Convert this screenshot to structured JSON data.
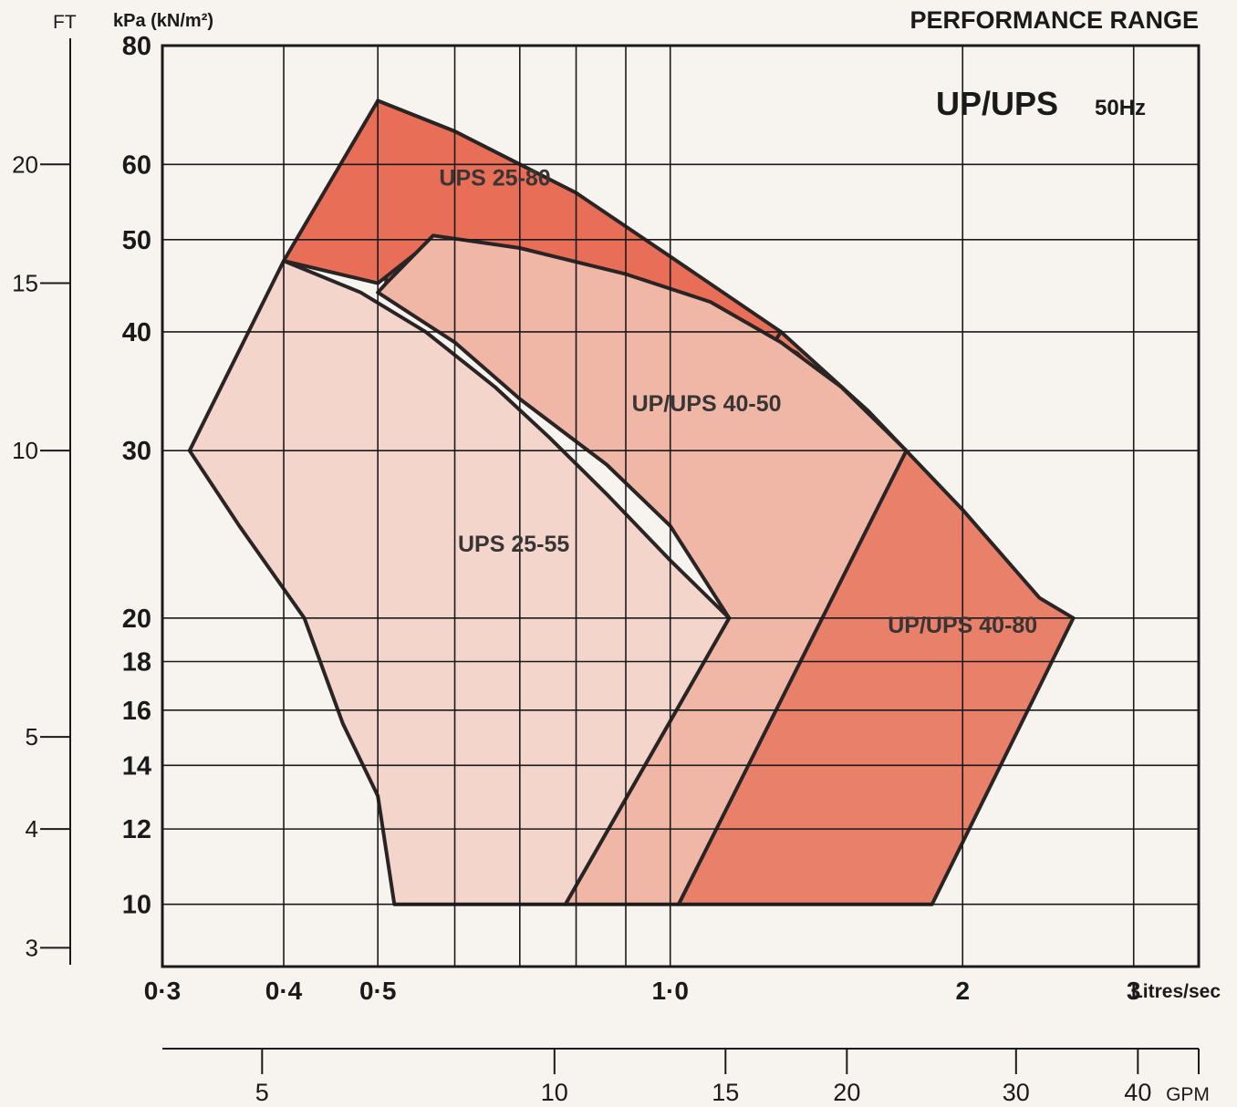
{
  "page_title": "PERFORMANCE RANGE",
  "chart_data": {
    "type": "area",
    "title": "UP/UPS",
    "subtitle": "50Hz",
    "y_left_label": "FT",
    "y_label": "kPa (kN/m²)",
    "x_label": "Litres/sec",
    "x2_label": "GPM",
    "y_scale": "log",
    "x_scale": "log",
    "xlim": [
      0.3,
      3.5
    ],
    "ylim": [
      8.6,
      80
    ],
    "grid": true,
    "x_ticks": [
      {
        "value": 0.3,
        "label": "0·3"
      },
      {
        "value": 0.4,
        "label": "0·4"
      },
      {
        "value": 0.5,
        "label": "0·5"
      },
      {
        "value": 1.0,
        "label": "1·0"
      },
      {
        "value": 2,
        "label": "2"
      },
      {
        "value": 3,
        "label": "3"
      }
    ],
    "x_grid": [
      0.4,
      0.5,
      0.6,
      0.7,
      0.8,
      0.9,
      1.0,
      2,
      3
    ],
    "y_ticks": [
      {
        "value": 80,
        "label": "80"
      },
      {
        "value": 60,
        "label": "60"
      },
      {
        "value": 50,
        "label": "50"
      },
      {
        "value": 40,
        "label": "40"
      },
      {
        "value": 30,
        "label": "30"
      },
      {
        "value": 20,
        "label": "20"
      },
      {
        "value": 18,
        "label": "18"
      },
      {
        "value": 16,
        "label": "16"
      },
      {
        "value": 14,
        "label": "14"
      },
      {
        "value": 12,
        "label": "12"
      },
      {
        "value": 10,
        "label": "10"
      }
    ],
    "ft_ticks": [
      {
        "label": "20",
        "kpa": 60
      },
      {
        "label": "15",
        "kpa": 45
      },
      {
        "label": "10",
        "kpa": 30
      },
      {
        "label": "5",
        "kpa": 15
      },
      {
        "label": "4",
        "kpa": 12
      },
      {
        "label": "3",
        "kpa": 9
      }
    ],
    "gpm_ticks": [
      {
        "label": "5",
        "lps": 0.38
      },
      {
        "label": "10",
        "lps": 0.76
      },
      {
        "label": "15",
        "lps": 1.14
      },
      {
        "label": "20",
        "lps": 1.52
      },
      {
        "label": "30",
        "lps": 2.27
      },
      {
        "label": "40",
        "lps": 3.03
      },
      {
        "label": "GPM",
        "lps": 3.5
      }
    ],
    "series": [
      {
        "name": "UP/UPS 40-80",
        "color": "#e8806a",
        "label_at": [
          2.0,
          19.3
        ],
        "polygon": [
          [
            0.5,
            70
          ],
          [
            0.6,
            65
          ],
          [
            0.8,
            56
          ],
          [
            1.0,
            47
          ],
          [
            1.3,
            40
          ],
          [
            1.6,
            33
          ],
          [
            2.0,
            26
          ],
          [
            2.4,
            21
          ],
          [
            2.6,
            20
          ],
          [
            1.86,
            10
          ],
          [
            1.02,
            10
          ],
          [
            1.72,
            30
          ],
          [
            1.35,
            38
          ],
          [
            1.0,
            44
          ],
          [
            0.75,
            48
          ],
          [
            0.59,
            50
          ],
          [
            0.51,
            45
          ]
        ]
      },
      {
        "name": "UPS 25-80",
        "color": "#e86e58",
        "label_at": [
          0.66,
          57
        ],
        "polygon": [
          [
            0.5,
            70
          ],
          [
            0.6,
            65
          ],
          [
            0.8,
            56
          ],
          [
            1.0,
            48
          ],
          [
            1.3,
            40
          ],
          [
            1.25,
            37.5
          ],
          [
            1.0,
            43
          ],
          [
            0.75,
            47
          ],
          [
            0.57,
            50
          ],
          [
            0.5,
            45
          ],
          [
            0.4,
            47.5
          ]
        ]
      },
      {
        "name": "UP/UPS 40-50",
        "color": "#f0b6a6",
        "label_at": [
          1.09,
          33
        ],
        "polygon": [
          [
            0.51,
            45
          ],
          [
            0.57,
            50.5
          ],
          [
            0.7,
            49
          ],
          [
            0.9,
            46
          ],
          [
            1.1,
            43
          ],
          [
            1.3,
            39
          ],
          [
            1.5,
            35
          ],
          [
            1.75,
            30
          ],
          [
            1.02,
            10
          ],
          [
            0.78,
            10
          ],
          [
            1.15,
            20
          ],
          [
            1.0,
            25
          ],
          [
            0.86,
            29
          ],
          [
            0.7,
            34
          ],
          [
            0.6,
            39
          ],
          [
            0.5,
            44
          ]
        ]
      },
      {
        "name": "UPS 25-55",
        "color": "#f3d5cb",
        "label_at": [
          0.69,
          23.5
        ],
        "polygon": [
          [
            0.4,
            47.5
          ],
          [
            0.48,
            44
          ],
          [
            0.56,
            40
          ],
          [
            0.66,
            35
          ],
          [
            0.75,
            31
          ],
          [
            0.86,
            27
          ],
          [
            1.0,
            23
          ],
          [
            1.15,
            20
          ],
          [
            0.78,
            10
          ],
          [
            0.52,
            10
          ],
          [
            0.5,
            13
          ],
          [
            0.46,
            15.5
          ],
          [
            0.42,
            20
          ],
          [
            0.36,
            25
          ],
          [
            0.32,
            30
          ]
        ]
      }
    ]
  }
}
